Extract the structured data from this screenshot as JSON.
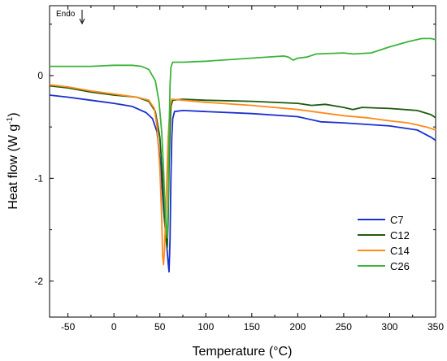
{
  "chart_data": {
    "type": "line",
    "xlabel": "Temperature",
    "xlabel_unit": "(°C)",
    "ylabel": "Heat flow",
    "ylabel_unit": "(W g",
    "ylabel_unit_sup": "-1",
    "ylabel_unit_close": ")",
    "xlim": [
      -70,
      350
    ],
    "ylim": [
      -2.35,
      0.68
    ],
    "xticks": [
      -50,
      0,
      50,
      100,
      150,
      200,
      250,
      300,
      350
    ],
    "xtick_labels": [
      "-50",
      "0",
      "50",
      "100",
      "150",
      "200",
      "250",
      "300",
      "350"
    ],
    "yticks": [
      0,
      -1,
      -2
    ],
    "ytick_labels": [
      "0",
      "-1",
      "-2"
    ],
    "grid": false,
    "legend_position": "bottom-right",
    "annotation": {
      "text": "Endo",
      "arrow": "down"
    },
    "series": [
      {
        "name": "C7",
        "color": "#1a2fd0",
        "points": [
          [
            -70,
            -0.19
          ],
          [
            -50,
            -0.21
          ],
          [
            -25,
            -0.24
          ],
          [
            0,
            -0.27
          ],
          [
            20,
            -0.3
          ],
          [
            35,
            -0.36
          ],
          [
            42,
            -0.42
          ],
          [
            47,
            -0.55
          ],
          [
            51,
            -0.9
          ],
          [
            54,
            -1.3
          ],
          [
            57,
            -1.6
          ],
          [
            59,
            -1.82
          ],
          [
            60,
            -1.91
          ],
          [
            61,
            -1.6
          ],
          [
            62,
            -1.0
          ],
          [
            63,
            -0.6
          ],
          [
            64,
            -0.42
          ],
          [
            66,
            -0.35
          ],
          [
            75,
            -0.34
          ],
          [
            100,
            -0.35
          ],
          [
            150,
            -0.37
          ],
          [
            200,
            -0.4
          ],
          [
            225,
            -0.45
          ],
          [
            250,
            -0.46
          ],
          [
            300,
            -0.49
          ],
          [
            330,
            -0.53
          ],
          [
            345,
            -0.6
          ],
          [
            350,
            -0.63
          ]
        ]
      },
      {
        "name": "C12",
        "color": "#1e5a10",
        "points": [
          [
            -70,
            -0.1
          ],
          [
            -50,
            -0.12
          ],
          [
            -25,
            -0.16
          ],
          [
            0,
            -0.19
          ],
          [
            25,
            -0.21
          ],
          [
            38,
            -0.25
          ],
          [
            45,
            -0.35
          ],
          [
            50,
            -0.6
          ],
          [
            53,
            -1.0
          ],
          [
            55,
            -1.4
          ],
          [
            57,
            -1.6
          ],
          [
            58,
            -1.67
          ],
          [
            59,
            -1.4
          ],
          [
            60,
            -0.9
          ],
          [
            61,
            -0.5
          ],
          [
            62,
            -0.3
          ],
          [
            64,
            -0.24
          ],
          [
            75,
            -0.23
          ],
          [
            100,
            -0.24
          ],
          [
            150,
            -0.25
          ],
          [
            200,
            -0.27
          ],
          [
            215,
            -0.29
          ],
          [
            230,
            -0.28
          ],
          [
            250,
            -0.31
          ],
          [
            260,
            -0.33
          ],
          [
            270,
            -0.31
          ],
          [
            300,
            -0.32
          ],
          [
            330,
            -0.34
          ],
          [
            345,
            -0.38
          ],
          [
            350,
            -0.41
          ]
        ]
      },
      {
        "name": "C14",
        "color": "#ff8a1a",
        "points": [
          [
            -70,
            -0.09
          ],
          [
            -50,
            -0.11
          ],
          [
            -25,
            -0.15
          ],
          [
            0,
            -0.18
          ],
          [
            25,
            -0.21
          ],
          [
            38,
            -0.24
          ],
          [
            44,
            -0.32
          ],
          [
            47,
            -0.5
          ],
          [
            50,
            -0.9
          ],
          [
            52,
            -1.4
          ],
          [
            53,
            -1.75
          ],
          [
            54,
            -1.84
          ],
          [
            55,
            -1.7
          ],
          [
            57,
            -1.2
          ],
          [
            59,
            -0.6
          ],
          [
            61,
            -0.3
          ],
          [
            63,
            -0.23
          ],
          [
            75,
            -0.24
          ],
          [
            100,
            -0.26
          ],
          [
            150,
            -0.29
          ],
          [
            200,
            -0.33
          ],
          [
            250,
            -0.39
          ],
          [
            275,
            -0.41
          ],
          [
            300,
            -0.44
          ],
          [
            320,
            -0.46
          ],
          [
            340,
            -0.5
          ],
          [
            350,
            -0.53
          ]
        ]
      },
      {
        "name": "C26",
        "color": "#3cb43c",
        "points": [
          [
            -70,
            0.09
          ],
          [
            -50,
            0.09
          ],
          [
            -25,
            0.09
          ],
          [
            0,
            0.1
          ],
          [
            20,
            0.1
          ],
          [
            30,
            0.09
          ],
          [
            38,
            0.06
          ],
          [
            45,
            -0.05
          ],
          [
            49,
            -0.25
          ],
          [
            52,
            -0.55
          ],
          [
            54,
            -0.9
          ],
          [
            55.5,
            -1.25
          ],
          [
            57,
            -1.5
          ],
          [
            58,
            -1.58
          ],
          [
            59,
            -1.2
          ],
          [
            60,
            -0.6
          ],
          [
            61,
            -0.1
          ],
          [
            62,
            0.08
          ],
          [
            64,
            0.13
          ],
          [
            75,
            0.13
          ],
          [
            100,
            0.14
          ],
          [
            150,
            0.17
          ],
          [
            185,
            0.19
          ],
          [
            190,
            0.18
          ],
          [
            195,
            0.15
          ],
          [
            200,
            0.17
          ],
          [
            210,
            0.18
          ],
          [
            220,
            0.21
          ],
          [
            250,
            0.22
          ],
          [
            260,
            0.21
          ],
          [
            280,
            0.22
          ],
          [
            300,
            0.28
          ],
          [
            320,
            0.33
          ],
          [
            335,
            0.36
          ],
          [
            345,
            0.36
          ],
          [
            350,
            0.35
          ]
        ]
      }
    ]
  }
}
